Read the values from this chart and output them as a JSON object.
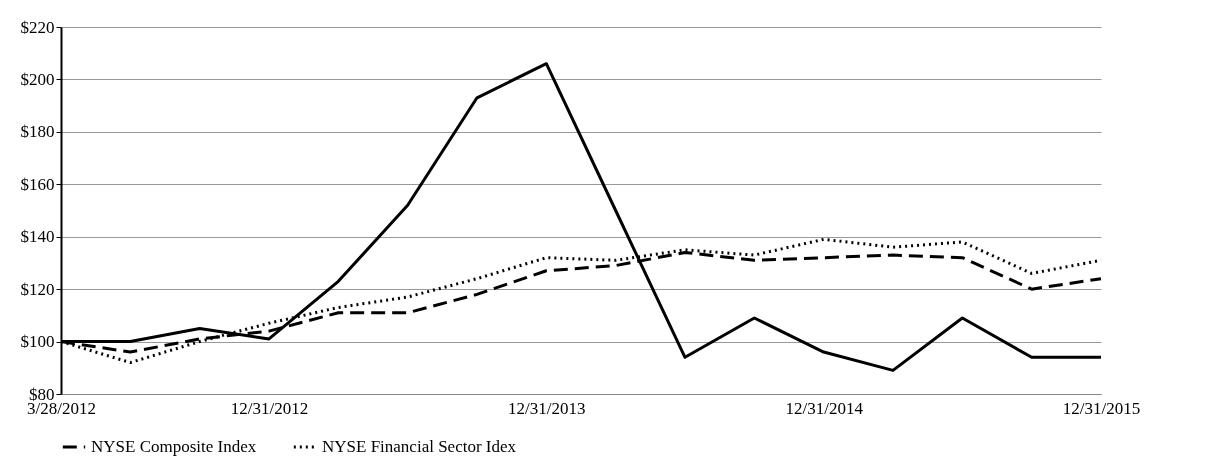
{
  "chart_data": {
    "type": "line",
    "categories": [
      "3/28/2012",
      null,
      null,
      "12/31/2012",
      null,
      null,
      null,
      "12/31/2013",
      null,
      null,
      null,
      "12/31/2014",
      null,
      null,
      null,
      "12/31/2015"
    ],
    "series": [
      {
        "name": "NYSE Composite Index",
        "color": "#000000",
        "line_style": "dashed",
        "values": [
          100,
          96,
          101,
          104,
          111,
          111,
          118,
          127,
          129,
          134,
          131,
          132,
          133,
          132,
          120,
          124
        ]
      },
      {
        "color": "#000000",
        "line_style": "solid",
        "values": [
          100,
          100,
          105,
          101,
          123,
          152,
          193,
          206,
          150,
          94,
          109,
          96,
          89,
          109,
          94,
          94
        ]
      },
      {
        "name": "NYSE Financial Sector Idex",
        "color": "#000000",
        "line_style": "dotted",
        "values": [
          100,
          92,
          100,
          107,
          113,
          117,
          124,
          132,
          131,
          135,
          133,
          139,
          136,
          138,
          126,
          131
        ]
      }
    ],
    "ylim": [
      80,
      220
    ],
    "yticks": [
      {
        "value": 80,
        "label": "$80"
      },
      {
        "value": 100,
        "label": "$100"
      },
      {
        "value": 120,
        "label": "$120"
      },
      {
        "value": 140,
        "label": "$140"
      },
      {
        "value": 160,
        "label": "$160"
      },
      {
        "value": 180,
        "label": "$180"
      },
      {
        "value": 200,
        "label": "$200"
      },
      {
        "value": 220,
        "label": "$220"
      }
    ],
    "grid": "y",
    "legend": "bottom",
    "marker": "none"
  }
}
